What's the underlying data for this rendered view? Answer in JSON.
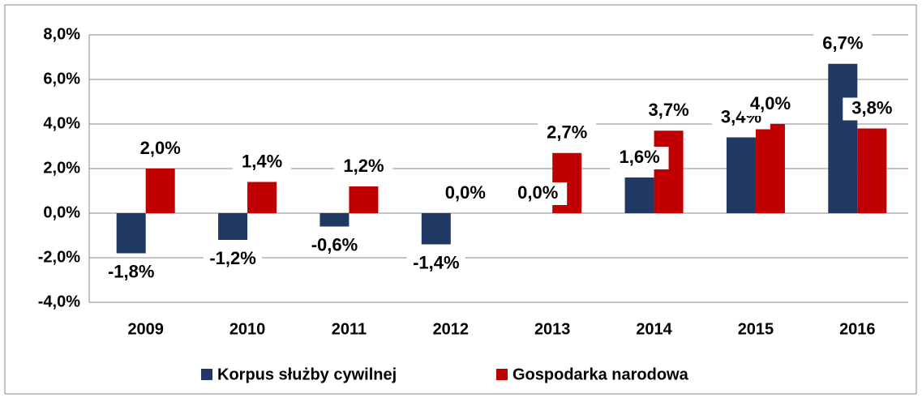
{
  "chart_data": {
    "type": "bar",
    "categories": [
      "2009",
      "2010",
      "2011",
      "2012",
      "2013",
      "2014",
      "2015",
      "2016"
    ],
    "series": [
      {
        "name": "Korpus służby cywilnej",
        "color": "#1f3864",
        "values": [
          -1.8,
          -1.2,
          -0.6,
          -1.4,
          0.0,
          1.6,
          3.4,
          6.7
        ],
        "value_labels": [
          "-1,8%",
          "-1,2%",
          "-0,6%",
          "-1,4%",
          "0,0%",
          "1,6%",
          "3,4%",
          "6,7%"
        ]
      },
      {
        "name": "Gospodarka narodowa",
        "color": "#c00000",
        "values": [
          2.0,
          1.4,
          1.2,
          0.0,
          2.7,
          3.7,
          4.0,
          3.8
        ],
        "value_labels": [
          "2,0%",
          "1,4%",
          "1,2%",
          "0,0%",
          "2,7%",
          "3,7%",
          "4,0%",
          "3,8%"
        ]
      }
    ],
    "ylim": [
      -4,
      8
    ],
    "yticks": [
      {
        "value": -4,
        "label": "-4,0%"
      },
      {
        "value": -2,
        "label": "-2,0%"
      },
      {
        "value": 0,
        "label": "0,0%"
      },
      {
        "value": 2,
        "label": "2,0%"
      },
      {
        "value": 4,
        "label": "4,0%"
      },
      {
        "value": 6,
        "label": "6,0%"
      },
      {
        "value": 8,
        "label": "8,0%"
      }
    ],
    "grid": true,
    "legend": "bottom"
  }
}
